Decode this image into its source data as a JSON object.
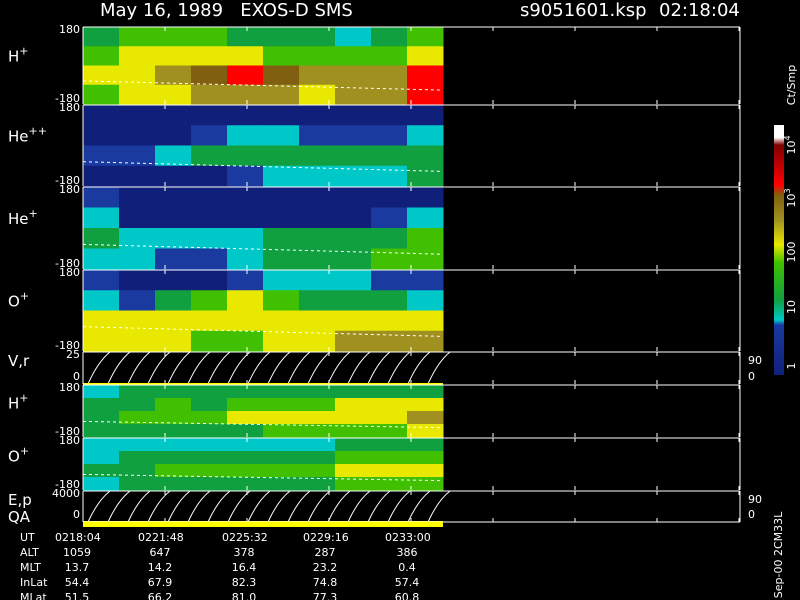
{
  "header": {
    "title": "May 16, 1989   EXOS-D SMS",
    "file": "s9051601.ksp",
    "time": "02:18:04"
  },
  "panels": [
    {
      "species": "H",
      "charge": "+",
      "ticks": [
        180,
        -180
      ],
      "levels": [
        [
          1.6,
          1.8,
          1.7,
          1.8,
          1.6,
          1.5,
          1.3,
          1.2,
          1.4,
          1.7
        ],
        [
          1.8,
          2.0,
          2.0,
          2.1,
          2.0,
          1.9,
          1.8,
          1.8,
          1.9,
          2.2
        ],
        [
          2.0,
          2.2,
          2.5,
          2.7,
          3.0,
          2.7,
          2.5,
          2.4,
          2.6,
          3.0
        ],
        [
          1.8,
          2.1,
          2.3,
          2.4,
          2.5,
          2.4,
          2.3,
          2.4,
          2.6,
          3.0
        ]
      ]
    },
    {
      "species": "He",
      "charge": "++",
      "ticks": [
        180,
        -180
      ],
      "levels": [
        [
          0.3,
          0.3,
          0.3,
          0.3,
          0.3,
          0.3,
          0.3,
          0.3,
          0.3,
          0.3
        ],
        [
          0.5,
          0.5,
          0.6,
          0.8,
          1.0,
          1.0,
          0.9,
          0.8,
          0.9,
          1.0
        ],
        [
          0.8,
          0.8,
          1.0,
          1.3,
          1.6,
          1.5,
          1.3,
          1.3,
          1.5,
          1.5
        ],
        [
          0.4,
          0.4,
          0.5,
          0.7,
          0.9,
          1.0,
          1.0,
          1.1,
          1.2,
          1.3
        ]
      ]
    },
    {
      "species": "He",
      "charge": "+",
      "ticks": [
        180,
        -180
      ],
      "levels": [
        [
          0.8,
          0.4,
          0.3,
          0.3,
          0.3,
          0.3,
          0.3,
          0.4,
          0.5,
          0.5
        ],
        [
          1.0,
          0.6,
          0.4,
          0.4,
          0.4,
          0.5,
          0.5,
          0.6,
          0.9,
          1.0
        ],
        [
          1.3,
          1.2,
          1.0,
          1.0,
          1.1,
          1.3,
          1.3,
          1.4,
          1.6,
          1.7
        ],
        [
          1.0,
          1.0,
          0.9,
          0.9,
          1.0,
          1.3,
          1.5,
          1.6,
          1.7,
          1.7
        ]
      ]
    },
    {
      "species": "O",
      "charge": "+",
      "ticks": [
        180,
        -180
      ],
      "levels": [
        [
          0.8,
          0.6,
          0.5,
          0.6,
          0.9,
          1.0,
          1.1,
          1.0,
          0.8,
          0.9
        ],
        [
          1.0,
          0.9,
          1.3,
          1.8,
          2.0,
          1.9,
          1.6,
          1.5,
          1.3,
          1.2
        ],
        [
          2.0,
          2.0,
          2.1,
          2.3,
          2.3,
          2.2,
          2.1,
          2.1,
          2.2,
          2.0
        ],
        [
          2.2,
          2.3,
          2.1,
          1.9,
          1.8,
          2.0,
          2.2,
          2.4,
          2.4,
          2.5
        ]
      ]
    },
    {
      "species": "V,r",
      "ticks": [
        25,
        0
      ],
      "right_ticks": [
        90,
        0
      ]
    },
    {
      "species": "H",
      "charge": "+",
      "ticks": [
        180,
        -180
      ],
      "levels": [
        [
          1.2,
          1.3,
          1.4,
          1.3,
          1.4,
          1.5,
          1.4,
          1.5,
          1.6,
          1.6
        ],
        [
          1.4,
          1.6,
          1.7,
          1.6,
          1.8,
          1.9,
          1.8,
          2.0,
          2.1,
          2.2
        ],
        [
          1.5,
          1.7,
          1.9,
          1.8,
          2.0,
          2.1,
          2.0,
          2.2,
          2.3,
          2.4
        ],
        [
          1.3,
          1.4,
          1.5,
          1.5,
          1.6,
          1.7,
          1.7,
          1.8,
          1.9,
          2.0
        ]
      ]
    },
    {
      "species": "O",
      "charge": "+",
      "ticks": [
        180,
        -180
      ],
      "levels": [
        [
          1.0,
          1.1,
          1.2,
          1.1,
          1.2,
          1.2,
          1.2,
          1.3,
          1.3,
          1.4
        ],
        [
          1.2,
          1.4,
          1.5,
          1.4,
          1.5,
          1.6,
          1.5,
          1.7,
          1.8,
          1.9
        ],
        [
          1.4,
          1.6,
          1.8,
          1.7,
          1.8,
          1.9,
          1.8,
          2.0,
          2.1,
          2.2
        ],
        [
          1.2,
          1.3,
          1.4,
          1.4,
          1.5,
          1.5,
          1.6,
          1.7,
          1.7,
          1.8
        ]
      ]
    },
    {
      "species": "E,p",
      "extra": "QA",
      "ticks": [
        4000,
        0
      ],
      "right_ticks": [
        90,
        0
      ]
    }
  ],
  "colorbar": {
    "unit": "Ct/Smp",
    "labels": [
      {
        "text": "10",
        "sup": "4"
      },
      {
        "text": "10",
        "sup": "3"
      },
      {
        "text": "100"
      },
      {
        "text": "10"
      },
      {
        "text": "1"
      }
    ]
  },
  "table": {
    "rows": [
      {
        "label": "UT",
        "values": [
          "0218:04",
          "0221:48",
          "0225:32",
          "0229:16",
          "0233:00"
        ]
      },
      {
        "label": "ALT",
        "values": [
          "1059",
          "647",
          "378",
          "287",
          "386"
        ]
      },
      {
        "label": "MLT",
        "values": [
          "13.7",
          "14.2",
          "16.4",
          "23.2",
          "0.4"
        ]
      },
      {
        "label": "InLat",
        "values": [
          "54.4",
          "67.9",
          "82.3",
          "74.8",
          "57.4"
        ]
      },
      {
        "label": "MLat",
        "values": [
          "51.5",
          "66.2",
          "81.0",
          "77.3",
          "60.8"
        ]
      }
    ]
  },
  "footer": "Sep-00 2CM33L"
}
